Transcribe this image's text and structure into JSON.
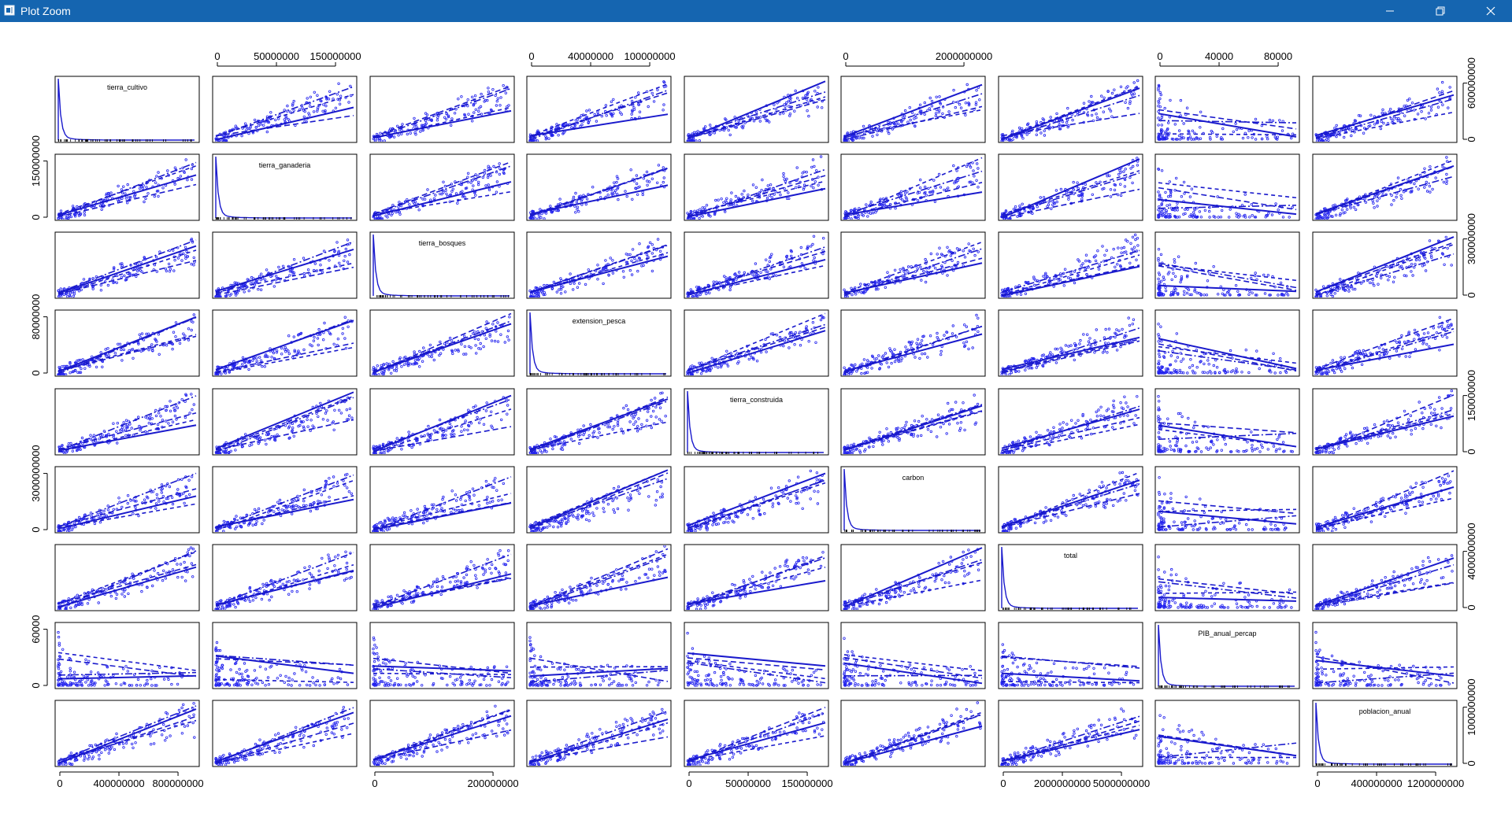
{
  "window": {
    "title": "Plot Zoom",
    "icons": [
      "app-icon",
      "minimize-icon",
      "restore-icon",
      "close-icon"
    ]
  },
  "chart_data": {
    "type": "scatter",
    "matrix": true,
    "point_color": "#2222ee",
    "line_color": "#1a1acc",
    "variables": [
      "tierra_cultivo",
      "tierra_ganaderia",
      "tierra_bosques",
      "extension_pesca",
      "tierra_construida",
      "carbon",
      "total",
      "PIB_anual_percap",
      "poblacion_anual"
    ],
    "top_axes": [
      {
        "column": 1,
        "ticks": [
          "0",
          "50000000",
          "150000000"
        ]
      },
      {
        "column": 3,
        "ticks": [
          "0",
          "40000000",
          "100000000"
        ]
      },
      {
        "column": 5,
        "ticks": [
          "0",
          "2000000000"
        ]
      },
      {
        "column": 7,
        "ticks": [
          "0",
          "40000",
          "80000"
        ]
      }
    ],
    "bottom_axes": [
      {
        "column": 0,
        "ticks": [
          "0",
          "400000000",
          "800000000"
        ]
      },
      {
        "column": 2,
        "ticks": [
          "0",
          "200000000"
        ]
      },
      {
        "column": 4,
        "ticks": [
          "0",
          "50000000",
          "150000000"
        ]
      },
      {
        "column": 6,
        "ticks": [
          "0",
          "2000000000",
          "5000000000"
        ]
      },
      {
        "column": 8,
        "ticks": [
          "0",
          "400000000",
          "1200000000"
        ]
      }
    ],
    "left_axes": [
      {
        "row": 1,
        "ticks": [
          "0",
          "150000000"
        ]
      },
      {
        "row": 3,
        "ticks": [
          "0",
          "80000000"
        ]
      },
      {
        "row": 5,
        "ticks": [
          "0",
          "3000000000"
        ]
      },
      {
        "row": 7,
        "ticks": [
          "0",
          "60000"
        ]
      }
    ],
    "right_axes": [
      {
        "row": 0,
        "ticks": [
          "0",
          "600000000"
        ]
      },
      {
        "row": 2,
        "ticks": [
          "0",
          "300000000"
        ]
      },
      {
        "row": 4,
        "ticks": [
          "0",
          "150000000"
        ]
      },
      {
        "row": 6,
        "ticks": [
          "0",
          "4000000000"
        ]
      },
      {
        "row": 8,
        "ticks": [
          "0",
          "1000000000"
        ]
      }
    ]
  }
}
